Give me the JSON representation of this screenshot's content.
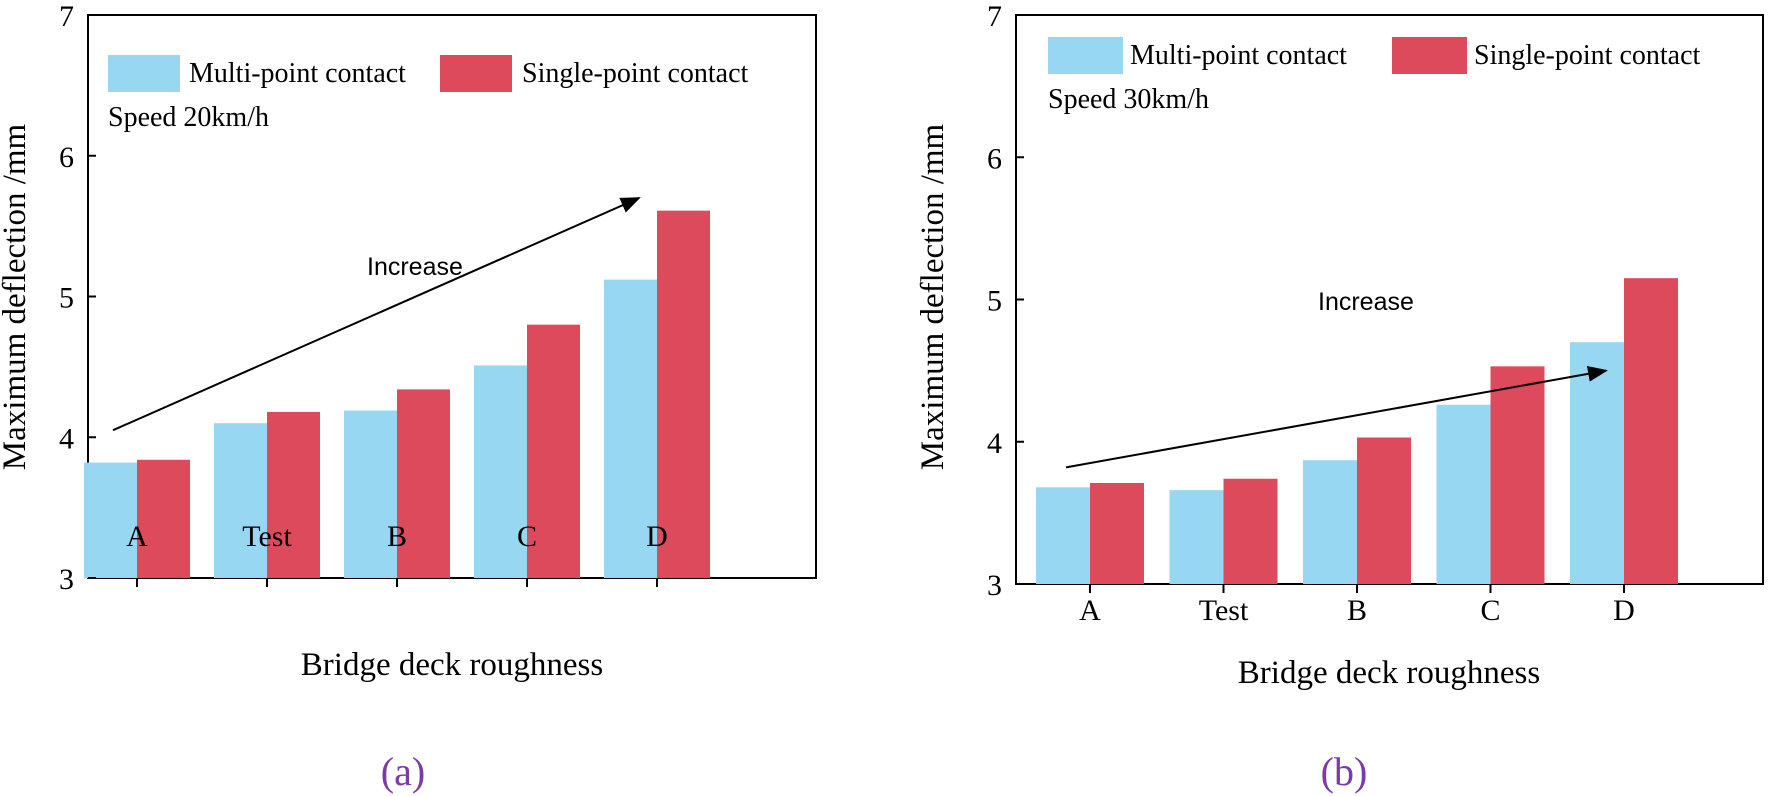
{
  "colors": {
    "multi": "#98d7f1",
    "single": "#dc4a5b",
    "axis": "#000000",
    "panel_label": "#7a3aa8"
  },
  "chart_data": [
    {
      "type": "bar",
      "panel_label": "(a)",
      "categories": [
        "A",
        "Test",
        "B",
        "C",
        "D"
      ],
      "series": [
        {
          "name": "Multi-point contact",
          "values": [
            3.82,
            4.1,
            4.19,
            4.51,
            5.12
          ]
        },
        {
          "name": "Single-point contact",
          "values": [
            3.84,
            4.18,
            4.34,
            4.8,
            5.61
          ]
        }
      ],
      "xlabel": "Bridge deck roughness",
      "ylabel": "Maximum deflection /mm",
      "ylim": [
        3,
        7
      ],
      "yticks": [
        "3",
        "4",
        "5",
        "6",
        "7"
      ],
      "legend_position": "top-left",
      "speed_note": "Speed 20km/h",
      "annotation": {
        "text": "Increase",
        "arrow_from": [
          "A",
          4.05
        ],
        "arrow_to": [
          "D",
          5.7
        ]
      }
    },
    {
      "type": "bar",
      "panel_label": "(b)",
      "categories": [
        "A",
        "Test",
        "B",
        "C",
        "D"
      ],
      "series": [
        {
          "name": "Multi-point contact",
          "values": [
            3.68,
            3.66,
            3.87,
            4.26,
            4.7
          ]
        },
        {
          "name": "Single-point contact",
          "values": [
            3.71,
            3.74,
            4.03,
            4.53,
            5.15
          ]
        }
      ],
      "xlabel": "Bridge deck roughness",
      "ylabel": "Maximum deflection /mm",
      "ylim": [
        3,
        7
      ],
      "yticks": [
        "3",
        "4",
        "5",
        "6",
        "7"
      ],
      "legend_position": "top-left",
      "speed_note": "Speed 30km/h",
      "annotation": {
        "text": "Increase",
        "arrow_from": [
          "A",
          3.82
        ],
        "arrow_to": [
          "D",
          4.5
        ]
      }
    }
  ]
}
